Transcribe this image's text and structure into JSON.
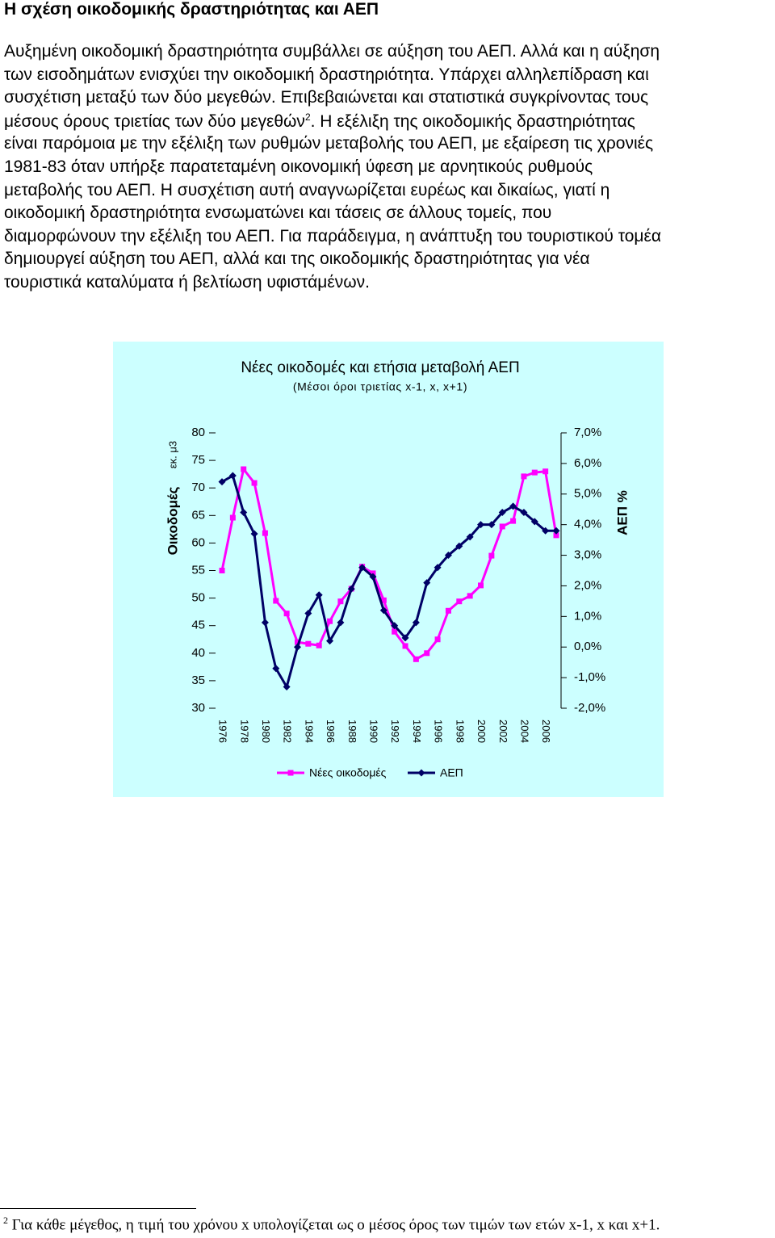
{
  "heading": "Η σχέση οικοδομικής δραστηριότητας και ΑΕΠ",
  "paragraph": {
    "lines_before": [
      "Αυξημένη οικοδομική δραστηριότητα συμβάλλει σε αύξηση του ΑΕΠ. Αλλά και η αύξηση",
      "των εισοδημάτων ενισχύει την οικοδομική δραστηριότητα. Υπάρχει αλληλεπίδραση και",
      "συσχέτιση μεταξύ των δύο μεγεθών. Επιβεβαιώνεται και στατιστικά συγκρίνοντας τους"
    ],
    "ref_line": {
      "before": "μέσους όρους τριετίας των δύο μεγεθών",
      "ref": "2",
      "after": ". Η εξέλιξη της οικοδομικής δραστηριότητας"
    },
    "lines_after": [
      "είναι παρόμοια με την εξέλιξη των ρυθμών μεταβολής του ΑΕΠ, με εξαίρεση τις χρονιές",
      "1981-83 όταν υπήρξε παρατεταμένη οικονομική ύφεση με αρνητικούς ρυθμούς",
      "μεταβολής του ΑΕΠ. Η συσχέτιση αυτή αναγνωρίζεται ευρέως και δικαίως, γιατί η",
      "οικοδομική δραστηριότητα ενσωματώνει και τάσεις σε άλλους τομείς, που",
      "διαμορφώνουν την εξέλιξη του ΑΕΠ. Για παράδειγμα, η ανάπτυξη του τουριστικού τομέα",
      "δημιουργεί αύξηση του ΑΕΠ, αλλά και της οικοδομικής δραστηριότητας για νέα",
      "τουριστικά καταλύματα ή βελτίωση υφιστάμένων."
    ]
  },
  "chart_data": {
    "type": "line",
    "title": "Νέες οικοδομές και ετήσια μεταβολή ΑΕΠ",
    "subtitle": "(Μέσοι όροι τριετίας x-1, x, x+1)",
    "y_label": "Οικοδομές",
    "y_unit": "εκ. μ3",
    "y2_label": "ΑΕΠ %",
    "categories": [
      "1976",
      null,
      "1978",
      null,
      "1980",
      null,
      "1982",
      null,
      "1984",
      null,
      "1986",
      null,
      "1988",
      null,
      "1990",
      null,
      "1992",
      null,
      "1994",
      null,
      "1996",
      null,
      "1998",
      null,
      "2000",
      null,
      "2002",
      null,
      "2004",
      null,
      "2006",
      null
    ],
    "ylim": [
      30,
      80
    ],
    "yticks": [
      30,
      35,
      40,
      45,
      50,
      55,
      60,
      65,
      70,
      75,
      80
    ],
    "y2lim": [
      -2,
      7
    ],
    "y2ticks": [
      {
        "value": -2,
        "label": "-2,0%"
      },
      {
        "value": -1,
        "label": "-1,0%"
      },
      {
        "value": 0,
        "label": "0,0%"
      },
      {
        "value": 1,
        "label": "1,0%"
      },
      {
        "value": 2,
        "label": "2,0%"
      },
      {
        "value": 3,
        "label": "3,0%"
      },
      {
        "value": 4,
        "label": "4,0%"
      },
      {
        "value": 5,
        "label": "5,0%"
      },
      {
        "value": 6,
        "label": "6,0%"
      },
      {
        "value": 7,
        "label": "7,0%"
      }
    ],
    "background": "#ccffff",
    "series": [
      {
        "name": "Νέες οικοδομές",
        "color": "#ff00ff",
        "marker": "square",
        "values": [
          55,
          64.6,
          73.4,
          70.9,
          61.8,
          49.5,
          47.2,
          42.0,
          41.7,
          41.4,
          45.8,
          49.4,
          51.7,
          55.7,
          54.5,
          49.6,
          43.9,
          41.3,
          38.9,
          40.0,
          42.5,
          47.7,
          49.4,
          50.4,
          52.3,
          57.7,
          63.0,
          64.0,
          72.1,
          72.8,
          73.0,
          61.4
        ]
      },
      {
        "name": "ΑΕΠ",
        "color": "#000066",
        "marker": "diamond",
        "axis": "y2",
        "values": [
          5.4,
          5.6,
          4.4,
          3.7,
          0.8,
          -0.7,
          -1.3,
          0.0,
          1.1,
          1.7,
          0.2,
          0.8,
          1.9,
          2.6,
          2.3,
          1.2,
          0.7,
          0.3,
          0.8,
          2.1,
          2.6,
          3.0,
          3.3,
          3.6,
          4.0,
          4.0,
          4.4,
          4.6,
          4.4,
          4.1,
          3.8,
          3.8
        ]
      }
    ]
  },
  "footnote": {
    "ref": "2",
    "text": "Για κάθε μέγεθος, η τιμή του χρόνου x υπολογίζεται ως ο μέσος όρος των τιμών των ετών x-1, x και x+1."
  }
}
